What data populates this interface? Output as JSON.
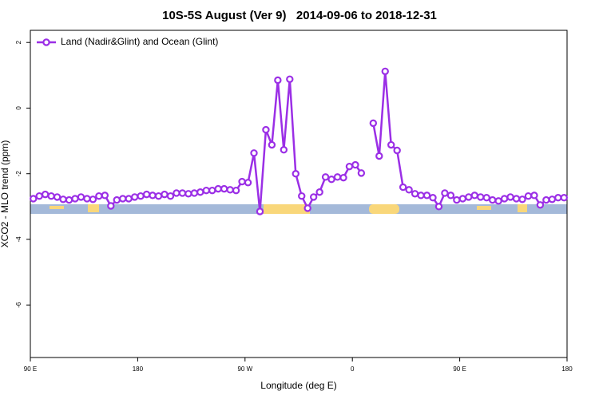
{
  "chart_data": {
    "type": "line",
    "title": "10S-5S August (Ver 9)   2014-09-06 to 2018-12-31",
    "xlabel": "Longitude (deg E)",
    "ylabel": "XCO2 - MLO trend (ppm)",
    "xlim": [
      90,
      540
    ],
    "ylim": [
      -7.6,
      2.37
    ],
    "xticks": [
      {
        "value": 90,
        "label": "90 E"
      },
      180,
      {
        "value": 270,
        "label": "90 W"
      },
      {
        "value": 360,
        "label": "0"
      },
      {
        "value": 450,
        "label": "90 E"
      },
      {
        "value": 540,
        "label": "180"
      }
    ],
    "yticks": [
      2,
      0,
      -2,
      -4,
      -6
    ],
    "legend": "top-left",
    "x": [
      92.5,
      97.5,
      102.5,
      107.5,
      112.5,
      117.5,
      122.5,
      127.5,
      132.5,
      137.5,
      142.5,
      147.5,
      152.5,
      157.5,
      162.5,
      167.5,
      172.5,
      177.5,
      182.5,
      187.5,
      192.5,
      197.5,
      202.5,
      207.5,
      212.5,
      217.5,
      222.5,
      227.5,
      232.5,
      237.5,
      242.5,
      247.5,
      252.5,
      257.5,
      262.5,
      267.5,
      272.5,
      277.5,
      282.5,
      287.5,
      292.5,
      297.5,
      302.5,
      307.5,
      312.5,
      317.5,
      322.5,
      327.5,
      332.5,
      337.5,
      342.5,
      347.5,
      352.5,
      357.5,
      362.5,
      367.5,
      372.5,
      377.5,
      382.5,
      387.5,
      392.5,
      397.5,
      402.5,
      407.5,
      412.5,
      417.5,
      422.5,
      427.5,
      432.5,
      437.5,
      442.5,
      447.5,
      452.5,
      457.5,
      462.5,
      467.5,
      472.5,
      477.5,
      482.5,
      487.5,
      492.5,
      497.5,
      502.5,
      507.5,
      512.5,
      517.5,
      522.5,
      527.5,
      532.5,
      537.5
    ],
    "series": [
      {
        "name": "Land (Nadir&Glint) and Ocean (Glint)",
        "color": "#9b2fe6",
        "values": [
          -2.76,
          -2.68,
          -2.63,
          -2.68,
          -2.71,
          -2.78,
          -2.8,
          -2.76,
          -2.71,
          -2.76,
          -2.78,
          -2.68,
          -2.66,
          -2.98,
          -2.8,
          -2.76,
          -2.76,
          -2.71,
          -2.68,
          -2.63,
          -2.66,
          -2.68,
          -2.63,
          -2.68,
          -2.59,
          -2.59,
          -2.61,
          -2.59,
          -2.56,
          -2.51,
          -2.51,
          -2.46,
          -2.46,
          -2.49,
          -2.51,
          -2.24,
          -2.27,
          -1.37,
          -3.15,
          -0.66,
          -1.12,
          0.85,
          -1.27,
          0.88,
          -2.0,
          -2.68,
          -3.05,
          -2.71,
          -2.56,
          -2.1,
          -2.17,
          -2.1,
          -2.12,
          -1.78,
          -1.73,
          -1.98,
          null,
          -0.46,
          -1.46,
          1.12,
          -1.12,
          -1.29,
          -2.41,
          -2.49,
          -2.61,
          -2.66,
          -2.66,
          -2.73,
          -3.0,
          -2.59,
          -2.66,
          -2.8,
          -2.76,
          -2.71,
          -2.66,
          -2.71,
          -2.73,
          -2.8,
          -2.83,
          -2.76,
          -2.71,
          -2.76,
          -2.78,
          -2.68,
          -2.66,
          -2.95,
          -2.8,
          -2.78,
          -2.73,
          -2.73
        ]
      }
    ]
  }
}
